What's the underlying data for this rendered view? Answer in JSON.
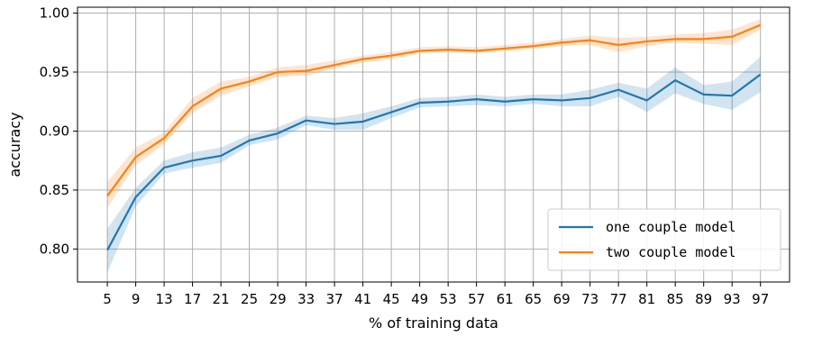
{
  "chart_data": {
    "type": "line",
    "xlabel": "% of training data",
    "ylabel": "accuracy",
    "x": [
      5,
      9,
      13,
      17,
      21,
      25,
      29,
      33,
      37,
      41,
      45,
      49,
      53,
      57,
      61,
      65,
      69,
      73,
      77,
      81,
      85,
      89,
      93,
      97
    ],
    "xticks": [
      "5",
      "9",
      "13",
      "17",
      "21",
      "25",
      "29",
      "33",
      "37",
      "41",
      "45",
      "49",
      "53",
      "57",
      "61",
      "65",
      "69",
      "73",
      "77",
      "81",
      "85",
      "89",
      "93",
      "97"
    ],
    "xlim": [
      0.8,
      101.1
    ],
    "ylim": [
      0.772,
      1.005
    ],
    "yticks": [
      "0.80",
      "0.85",
      "0.90",
      "0.95",
      "1.00"
    ],
    "ytick_values": [
      0.8,
      0.85,
      0.9,
      0.95,
      1.0
    ],
    "grid": true,
    "legend_position": "lower-right",
    "series": [
      {
        "name": "one couple model",
        "color": "#1f77b4",
        "values": [
          0.799,
          0.844,
          0.869,
          0.875,
          0.879,
          0.892,
          0.898,
          0.909,
          0.906,
          0.908,
          0.916,
          0.924,
          0.925,
          0.927,
          0.925,
          0.927,
          0.926,
          0.928,
          0.935,
          0.926,
          0.943,
          0.931,
          0.93,
          0.948
        ],
        "lower": [
          0.78,
          0.836,
          0.864,
          0.869,
          0.873,
          0.888,
          0.893,
          0.905,
          0.901,
          0.901,
          0.911,
          0.92,
          0.921,
          0.922,
          0.921,
          0.923,
          0.921,
          0.921,
          0.929,
          0.916,
          0.932,
          0.923,
          0.918,
          0.933
        ],
        "upper": [
          0.817,
          0.852,
          0.875,
          0.882,
          0.886,
          0.897,
          0.903,
          0.913,
          0.911,
          0.915,
          0.921,
          0.928,
          0.929,
          0.931,
          0.929,
          0.931,
          0.931,
          0.935,
          0.941,
          0.936,
          0.954,
          0.939,
          0.942,
          0.963
        ]
      },
      {
        "name": "two couple model",
        "color": "#ff7f0e",
        "values": [
          0.845,
          0.878,
          0.894,
          0.921,
          0.936,
          0.942,
          0.95,
          0.951,
          0.956,
          0.961,
          0.964,
          0.968,
          0.969,
          0.968,
          0.97,
          0.972,
          0.975,
          0.977,
          0.973,
          0.976,
          0.978,
          0.978,
          0.98,
          0.99
        ],
        "lower": [
          0.835,
          0.871,
          0.889,
          0.915,
          0.93,
          0.938,
          0.946,
          0.947,
          0.953,
          0.958,
          0.961,
          0.966,
          0.967,
          0.966,
          0.968,
          0.97,
          0.972,
          0.973,
          0.967,
          0.972,
          0.975,
          0.974,
          0.973,
          0.986
        ],
        "upper": [
          0.857,
          0.886,
          0.899,
          0.928,
          0.942,
          0.946,
          0.954,
          0.956,
          0.96,
          0.964,
          0.967,
          0.971,
          0.972,
          0.971,
          0.973,
          0.975,
          0.978,
          0.981,
          0.979,
          0.98,
          0.982,
          0.983,
          0.986,
          0.995
        ]
      }
    ]
  }
}
